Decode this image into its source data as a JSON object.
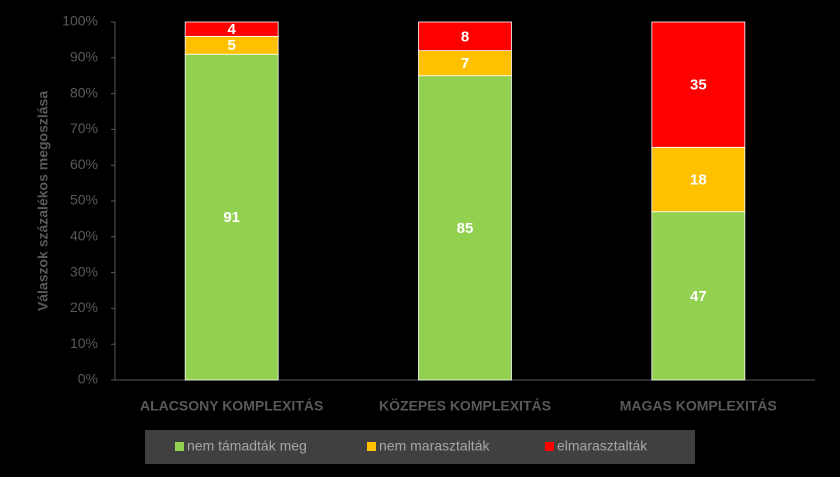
{
  "chart_data": {
    "type": "stacked_bar",
    "y_label": "Válaszok százalékos megoszlása",
    "categories": [
      "ALACSONY KOMPLEXITÁS",
      "KÖZEPES KOMPLEXITÁS",
      "MAGAS KOMPLEXITÁS"
    ],
    "series": [
      {
        "name": "nem támadták meg",
        "color": "#92d050",
        "values": [
          91,
          85,
          47
        ]
      },
      {
        "name": "nem marasztalták",
        "color": "#ffc000",
        "values": [
          5,
          7,
          18
        ]
      },
      {
        "name": "elmarasztalták",
        "color": "#ff0000",
        "values": [
          4,
          8,
          35
        ]
      }
    ],
    "ylim": [
      0,
      100
    ],
    "yticks": [
      {
        "value": 0,
        "label": "0%"
      },
      {
        "value": 10,
        "label": "10%"
      },
      {
        "value": 20,
        "label": "20%"
      },
      {
        "value": 30,
        "label": "30%"
      },
      {
        "value": 40,
        "label": "40%"
      },
      {
        "value": 50,
        "label": "50%"
      },
      {
        "value": 60,
        "label": "60%"
      },
      {
        "value": 70,
        "label": "70%"
      },
      {
        "value": 80,
        "label": "80%"
      },
      {
        "value": 90,
        "label": "90%"
      },
      {
        "value": 100,
        "label": "100%"
      }
    ],
    "legend": "bottom"
  }
}
